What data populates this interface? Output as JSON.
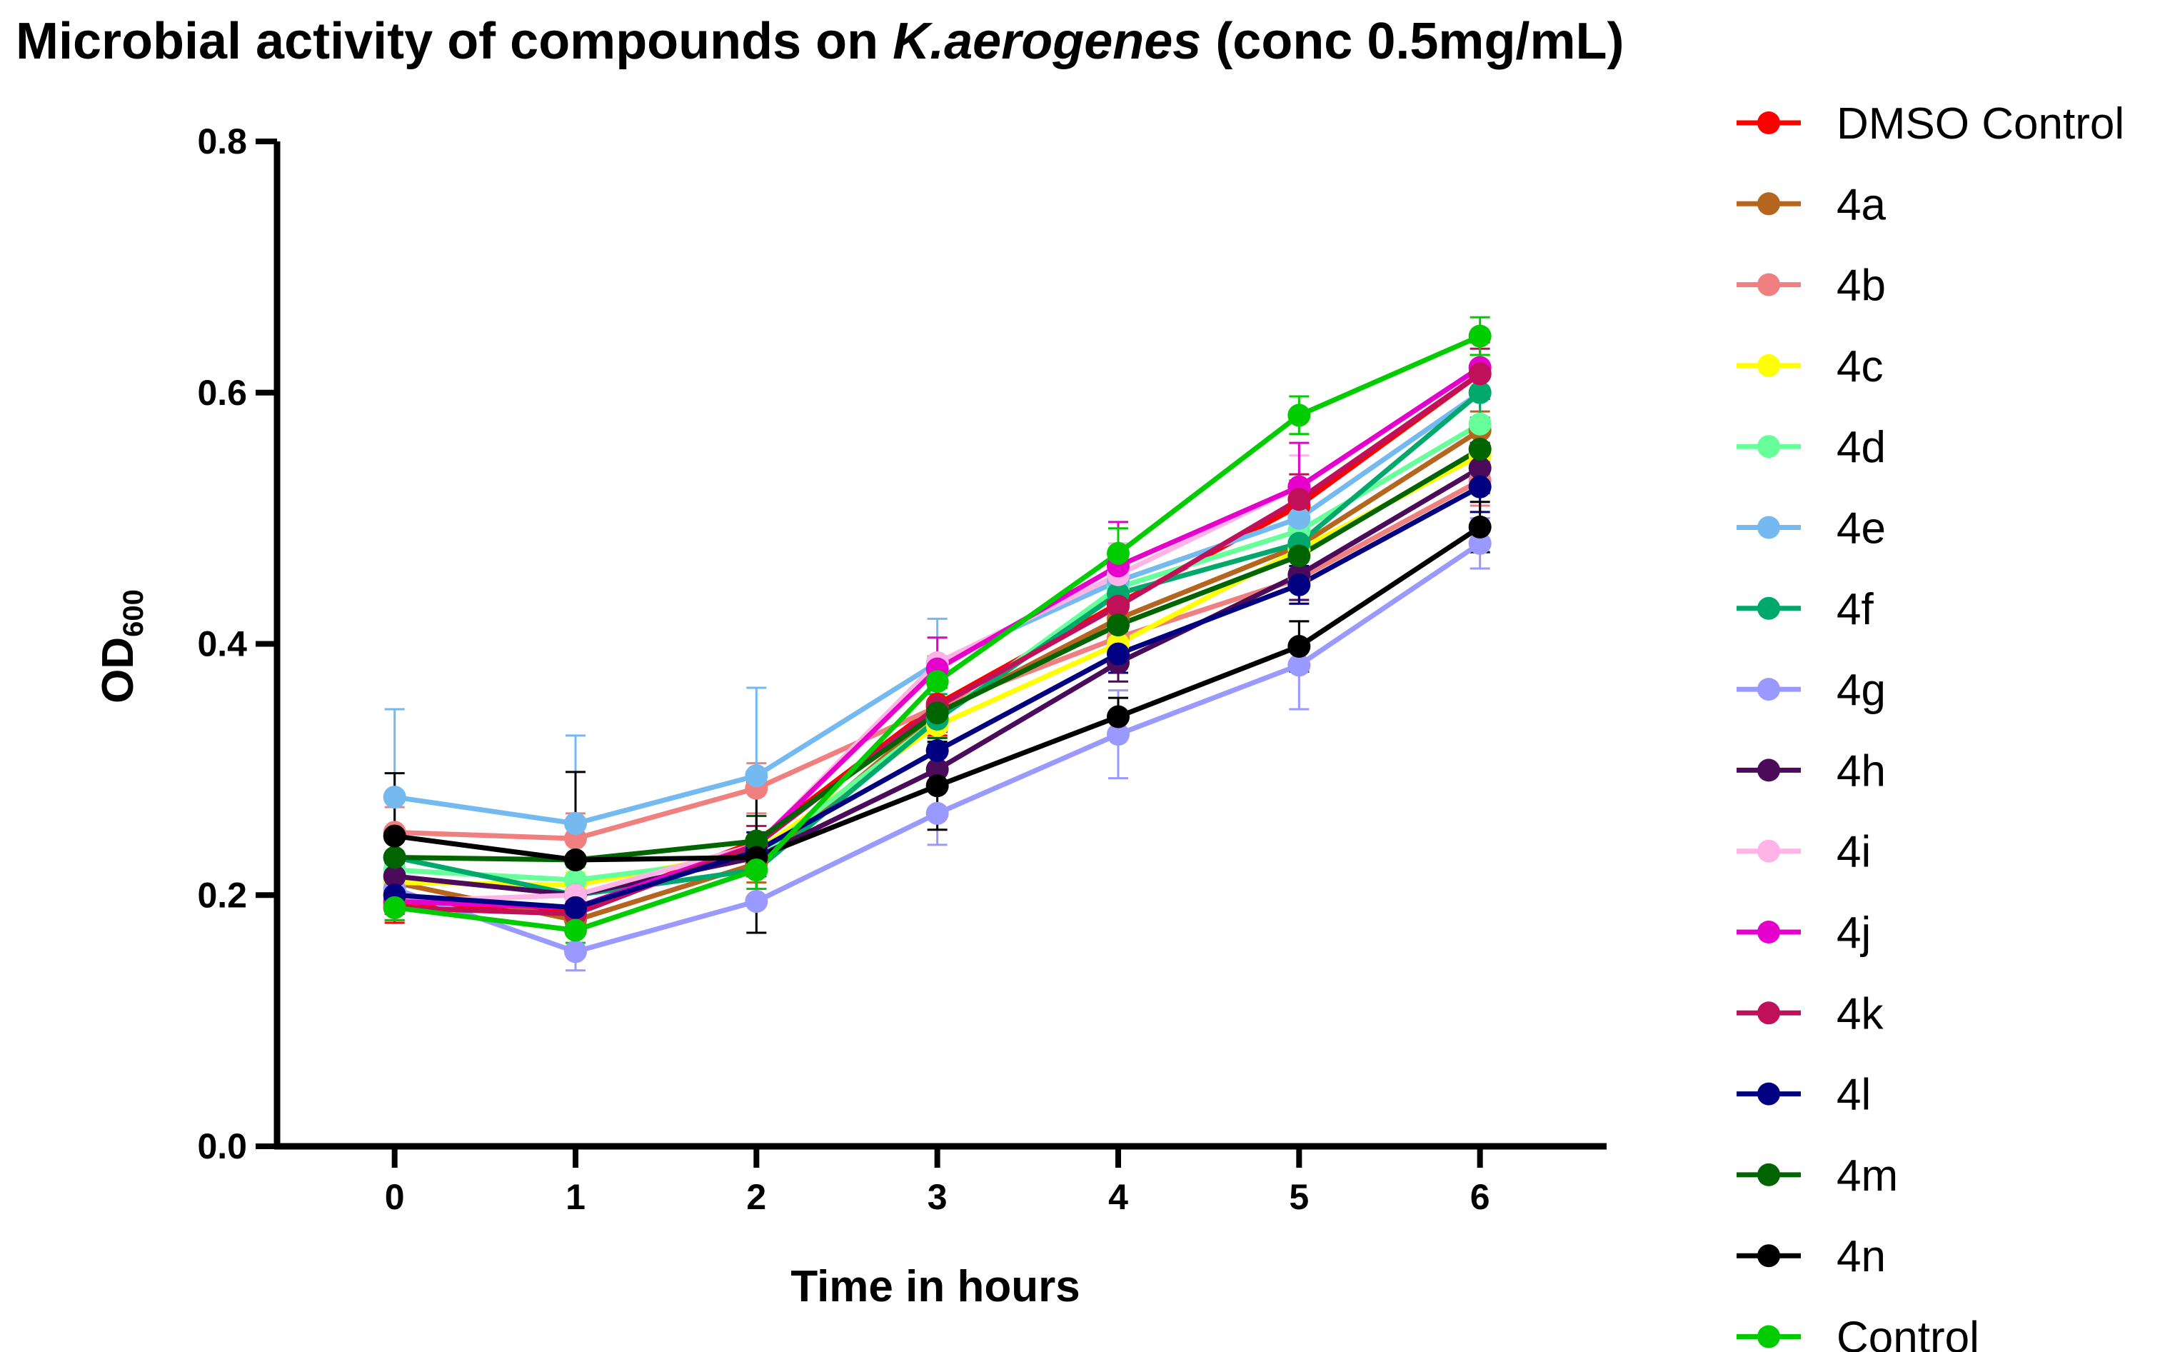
{
  "chart_data": {
    "type": "line",
    "title_prefix": "Microbial activity of compounds on ",
    "title_organism": "K.aerogenes",
    "title_suffix": " (conc 0.5mg/mL)",
    "xlabel": "Time in hours",
    "ylabel_main": "OD",
    "ylabel_sub": "600",
    "x": [
      0,
      1,
      2,
      3,
      4,
      5,
      6
    ],
    "x_tick_labels": [
      "0",
      "1",
      "2",
      "3",
      "4",
      "5",
      "6"
    ],
    "y_ticks": [
      0.0,
      0.2,
      0.4,
      0.6,
      0.8
    ],
    "y_tick_labels": [
      "0.0",
      "0.2",
      "0.4",
      "0.6",
      "0.8"
    ],
    "xlim": [
      -0.65,
      6.7
    ],
    "ylim": [
      0,
      0.8
    ],
    "legend_position": "right",
    "series": [
      {
        "name": "DMSO Control",
        "color": "#ff0000",
        "values": [
          0.193,
          0.188,
          0.243,
          0.352,
          0.432,
          0.51,
          0.615
        ],
        "errors": [
          0.015,
          0.015,
          0.02,
          0.025,
          0.025,
          0.02,
          0.015
        ]
      },
      {
        "name": "4a",
        "color": "#b5651d",
        "values": [
          0.21,
          0.18,
          0.225,
          0.345,
          0.42,
          0.478,
          0.57
        ],
        "errors": [
          0.01,
          0.01,
          0.015,
          0.02,
          0.02,
          0.02,
          0.015
        ]
      },
      {
        "name": "4b",
        "color": "#f08080",
        "values": [
          0.25,
          0.245,
          0.285,
          0.35,
          0.405,
          0.452,
          0.53
        ],
        "errors": [
          0.02,
          0.02,
          0.02,
          0.02,
          0.02,
          0.02,
          0.02
        ]
      },
      {
        "name": "4c",
        "color": "#ffff00",
        "values": [
          0.21,
          0.208,
          0.235,
          0.335,
          0.4,
          0.475,
          0.55
        ],
        "errors": [
          0.01,
          0.01,
          0.015,
          0.02,
          0.02,
          0.02,
          0.02
        ]
      },
      {
        "name": "4d",
        "color": "#66ff99",
        "values": [
          0.22,
          0.212,
          0.23,
          0.34,
          0.445,
          0.49,
          0.575
        ],
        "errors": [
          0.01,
          0.01,
          0.015,
          0.02,
          0.02,
          0.02,
          0.02
        ]
      },
      {
        "name": "4e",
        "color": "#74b9f0",
        "values": [
          0.278,
          0.257,
          0.295,
          0.385,
          0.45,
          0.5,
          0.6
        ],
        "errors": [
          0.07,
          0.07,
          0.07,
          0.035,
          0.02,
          0.02,
          0.02
        ]
      },
      {
        "name": "4f",
        "color": "#00a86b",
        "values": [
          0.23,
          0.2,
          0.22,
          0.34,
          0.44,
          0.48,
          0.6
        ],
        "errors": [
          0.015,
          0.015,
          0.015,
          0.02,
          0.02,
          0.02,
          0.02
        ]
      },
      {
        "name": "4g",
        "color": "#9999ff",
        "values": [
          0.205,
          0.155,
          0.195,
          0.265,
          0.328,
          0.383,
          0.48
        ],
        "errors": [
          0.015,
          0.015,
          0.025,
          0.025,
          0.035,
          0.035,
          0.02
        ]
      },
      {
        "name": "4h",
        "color": "#4b0a5a",
        "values": [
          0.215,
          0.2,
          0.23,
          0.3,
          0.385,
          0.455,
          0.54
        ],
        "errors": [
          0.01,
          0.01,
          0.015,
          0.015,
          0.015,
          0.02,
          0.02
        ]
      },
      {
        "name": "4i",
        "color": "#ffb3e6",
        "values": [
          0.195,
          0.2,
          0.24,
          0.385,
          0.455,
          0.525,
          0.62
        ],
        "errors": [
          0.01,
          0.01,
          0.015,
          0.02,
          0.025,
          0.025,
          0.02
        ]
      },
      {
        "name": "4j",
        "color": "#e600cc",
        "values": [
          0.195,
          0.19,
          0.24,
          0.38,
          0.462,
          0.525,
          0.62
        ],
        "errors": [
          0.01,
          0.01,
          0.015,
          0.025,
          0.035,
          0.035,
          0.02
        ]
      },
      {
        "name": "4k",
        "color": "#c0105a",
        "values": [
          0.19,
          0.185,
          0.24,
          0.35,
          0.43,
          0.515,
          0.615
        ],
        "errors": [
          0.01,
          0.01,
          0.015,
          0.02,
          0.02,
          0.02,
          0.02
        ]
      },
      {
        "name": "4l",
        "color": "#000080",
        "values": [
          0.2,
          0.19,
          0.235,
          0.315,
          0.392,
          0.447,
          0.525
        ],
        "errors": [
          0.01,
          0.01,
          0.015,
          0.015,
          0.015,
          0.015,
          0.02
        ]
      },
      {
        "name": "4m",
        "color": "#006400",
        "values": [
          0.23,
          0.228,
          0.243,
          0.345,
          0.415,
          0.47,
          0.555
        ],
        "errors": [
          0.015,
          0.015,
          0.02,
          0.02,
          0.02,
          0.02,
          0.02
        ]
      },
      {
        "name": "4n",
        "color": "#000000",
        "values": [
          0.247,
          0.228,
          0.23,
          0.287,
          0.342,
          0.398,
          0.493
        ],
        "errors": [
          0.05,
          0.07,
          0.06,
          0.035,
          0.015,
          0.02,
          0.02
        ]
      },
      {
        "name": "Control",
        "color": "#00cc00",
        "values": [
          0.19,
          0.172,
          0.22,
          0.37,
          0.472,
          0.582,
          0.645
        ],
        "errors": [
          0.01,
          0.01,
          0.015,
          0.02,
          0.02,
          0.015,
          0.015
        ]
      }
    ]
  }
}
